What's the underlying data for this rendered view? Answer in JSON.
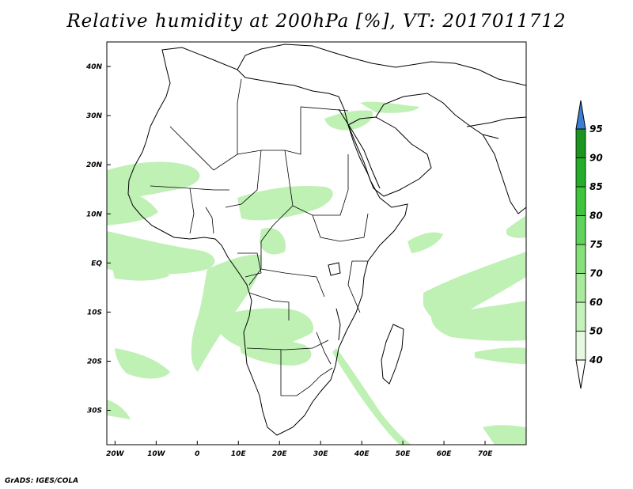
{
  "title": "Relative humidity at 200hPa [%], VT: 2017011712",
  "footer": "GrADS: IGES/COLA",
  "map": {
    "lon_range": [
      -22,
      80
    ],
    "lat_range": [
      -37,
      45
    ],
    "xticks": [
      {
        "value": -20,
        "label": "20W"
      },
      {
        "value": -10,
        "label": "10W"
      },
      {
        "value": 0,
        "label": "0"
      },
      {
        "value": 10,
        "label": "10E"
      },
      {
        "value": 20,
        "label": "20E"
      },
      {
        "value": 30,
        "label": "30E"
      },
      {
        "value": 40,
        "label": "40E"
      },
      {
        "value": 50,
        "label": "50E"
      },
      {
        "value": 60,
        "label": "60E"
      },
      {
        "value": 70,
        "label": "70E"
      }
    ],
    "yticks": [
      {
        "value": 40,
        "label": "40N"
      },
      {
        "value": 30,
        "label": "30N"
      },
      {
        "value": 20,
        "label": "20N"
      },
      {
        "value": 10,
        "label": "10N"
      },
      {
        "value": 0,
        "label": "EQ"
      },
      {
        "value": -10,
        "label": "10S"
      },
      {
        "value": -20,
        "label": "20S"
      },
      {
        "value": -30,
        "label": "30S"
      }
    ]
  },
  "colorbar": {
    "levels": [
      {
        "label": "40",
        "color": "#ffffff"
      },
      {
        "label": "50",
        "color": "#e6f9e0"
      },
      {
        "label": "60",
        "color": "#c5f2bb"
      },
      {
        "label": "70",
        "color": "#a8eb9c"
      },
      {
        "label": "75",
        "color": "#86e07a"
      },
      {
        "label": "80",
        "color": "#5fd35b"
      },
      {
        "label": "85",
        "color": "#3fc43c"
      },
      {
        "label": "90",
        "color": "#27ad2a"
      },
      {
        "label": "95",
        "color": "#1a951f"
      }
    ],
    "under_color": "#ffffff",
    "over_color": "#3a7fd4"
  }
}
